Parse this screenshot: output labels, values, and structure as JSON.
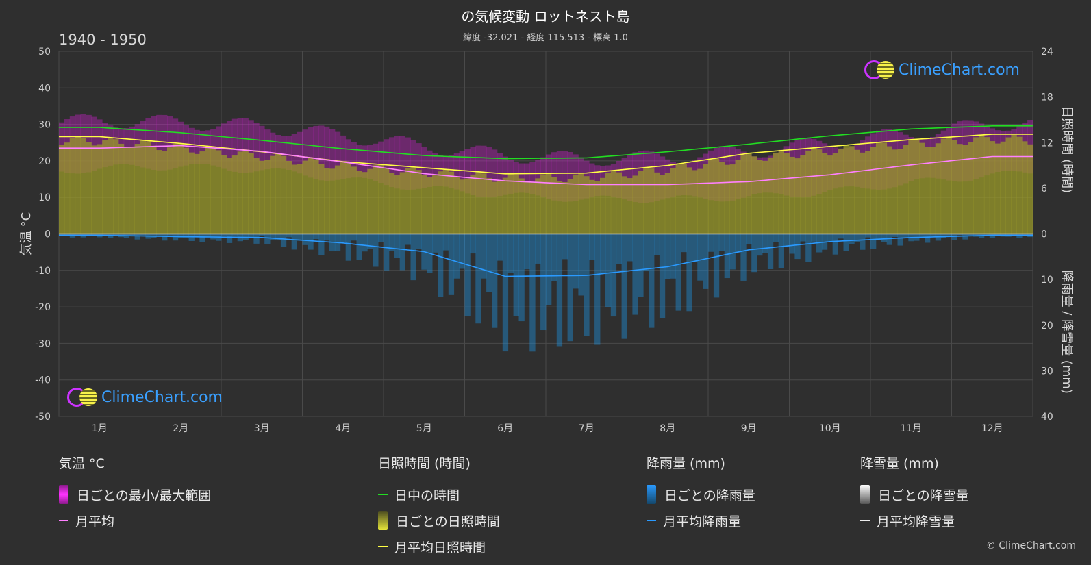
{
  "header": {
    "title": "の気候変動 ロットネスト島",
    "subtitle": "緯度 -32.021 - 経度 115.513 - 標高 1.0",
    "period": "1940 - 1950"
  },
  "logo_text": "ClimeChart.com",
  "copyright": "© ClimeChart.com",
  "axes": {
    "left_title": "気温 °C",
    "right_top_title": "日照時間 (時間)",
    "right_bottom_title": "降雨量 / 降雪量 (mm)"
  },
  "legend": {
    "temp": {
      "heading": "気温 °C",
      "range": "日ごとの最小/最大範囲",
      "avg": "月平均"
    },
    "sun": {
      "heading": "日照時間 (時間)",
      "daylight": "日中の時間",
      "daily": "日ごとの日照時間",
      "avg": "月平均日照時間"
    },
    "rain": {
      "heading": "降雨量 (mm)",
      "daily": "日ごとの降雨量",
      "avg": "月平均降雨量"
    },
    "snow": {
      "heading": "降雪量 (mm)",
      "daily": "日ごとの降雪量",
      "avg": "月平均降雪量"
    }
  },
  "colors": {
    "background": "#2f2f2f",
    "temp_range": "#e020e0",
    "temp_avg": "#ff80ff",
    "daylight": "#22dd22",
    "sunshine_fill": "#9a9a2a",
    "sunshine_avg": "#ffff44",
    "rain": "#1f8fd8",
    "rain_avg": "#2a9aff",
    "snow": "#dddddd"
  },
  "chart_data": {
    "type": "line",
    "categories": [
      "1月",
      "2月",
      "3月",
      "4月",
      "5月",
      "6月",
      "7月",
      "8月",
      "9月",
      "10月",
      "11月",
      "12月"
    ],
    "left_axis": {
      "label": "気温 °C",
      "ticks": [
        50,
        40,
        30,
        20,
        10,
        0,
        -10,
        -20,
        -30,
        -40,
        -50
      ],
      "ylim": [
        -50,
        50
      ]
    },
    "right_axis_sunshine": {
      "label": "日照時間 (時間)",
      "ticks": [
        24,
        18,
        12,
        6,
        0
      ],
      "ylim": [
        0,
        24
      ]
    },
    "right_axis_precip": {
      "label": "降雨量 / 降雪量 (mm)",
      "ticks": [
        0,
        10,
        20,
        30,
        40
      ],
      "ylim": [
        0,
        40
      ]
    },
    "series": [
      {
        "name": "日中の時間",
        "axis": "sunshine",
        "values": [
          14.0,
          13.3,
          12.3,
          11.2,
          10.3,
          9.9,
          10.0,
          10.8,
          11.8,
          12.9,
          13.8,
          14.2
        ]
      },
      {
        "name": "月平均日照時間",
        "axis": "sunshine",
        "values": [
          12.8,
          11.9,
          10.8,
          9.5,
          8.7,
          7.9,
          8.0,
          9.0,
          10.6,
          11.5,
          12.4,
          13.1
        ]
      },
      {
        "name": "月平均",
        "axis": "temp",
        "values": [
          23.5,
          24.2,
          22.6,
          19.7,
          16.5,
          14.5,
          13.5,
          13.5,
          14.3,
          16.2,
          18.9,
          21.2
        ]
      },
      {
        "name": "日ごとの最小/最大範囲 (max)",
        "axis": "temp",
        "values": [
          29.0,
          28.5,
          27.5,
          25.0,
          22.0,
          19.5,
          18.5,
          19.0,
          20.5,
          23.0,
          25.5,
          28.0
        ]
      },
      {
        "name": "日ごとの最小/最大範囲 (min)",
        "axis": "temp",
        "values": [
          19.0,
          19.5,
          18.5,
          16.0,
          13.5,
          11.5,
          10.5,
          10.5,
          11.0,
          12.5,
          15.0,
          17.0
        ]
      },
      {
        "name": "月平均降雨量",
        "axis": "precip",
        "values": [
          0.3,
          0.6,
          0.8,
          2.0,
          3.9,
          9.3,
          9.1,
          7.2,
          3.5,
          1.7,
          0.8,
          0.3
        ]
      },
      {
        "name": "月平均降雪量",
        "axis": "precip",
        "values": [
          0,
          0,
          0,
          0,
          0,
          0,
          0,
          0,
          0,
          0,
          0,
          0
        ]
      }
    ]
  }
}
